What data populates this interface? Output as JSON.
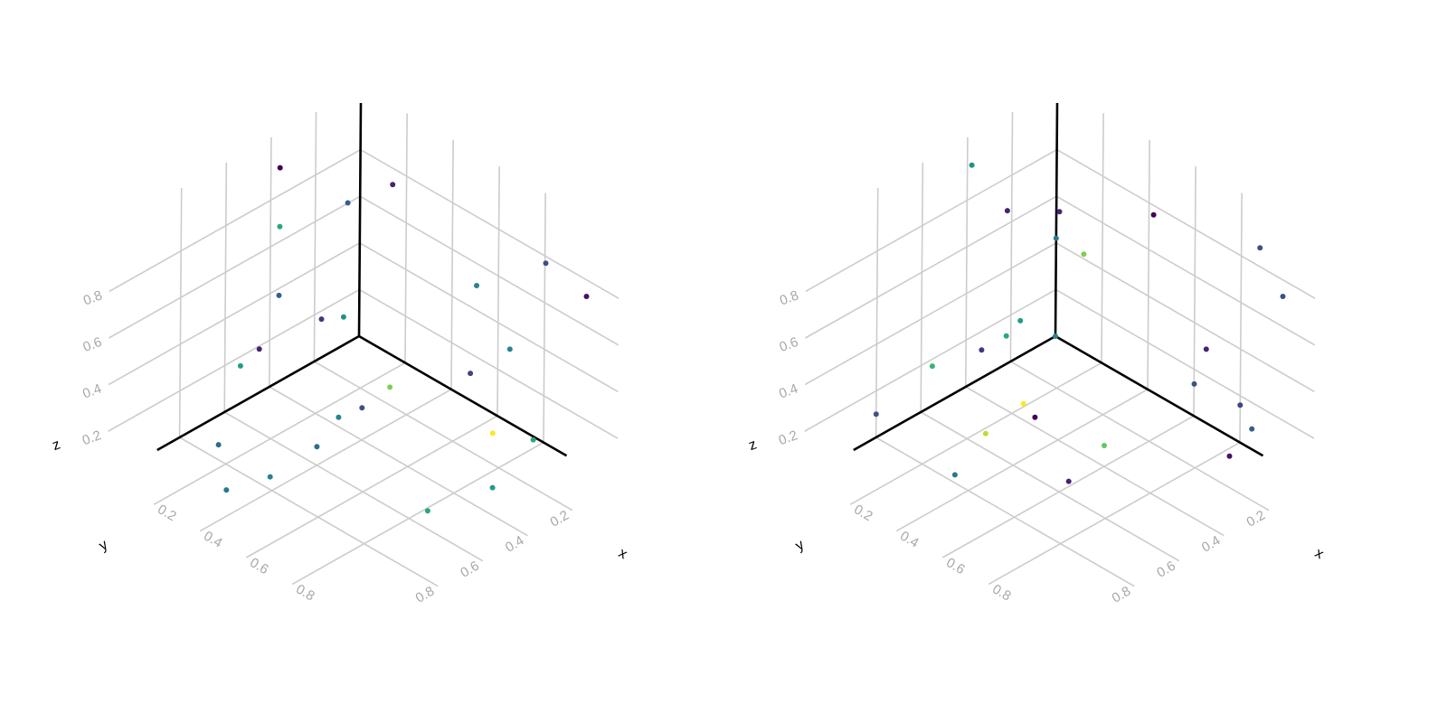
{
  "colormap": [
    "#440154",
    "#46327e",
    "#365c8d",
    "#277f8e",
    "#1fa187",
    "#4ac16d",
    "#a0da39",
    "#fde725"
  ],
  "chart_data": [
    {
      "type": "scatter",
      "title": "",
      "xlabel": "x",
      "ylabel": "y",
      "zlabel": "z",
      "xlim": [
        0,
        1
      ],
      "ylim": [
        0,
        1
      ],
      "zlim": [
        0,
        1
      ],
      "x_ticks": [
        "0.2",
        "0.4",
        "0.6",
        "0.8"
      ],
      "y_ticks": [
        "0.2",
        "0.4",
        "0.6",
        "0.8"
      ],
      "z_ticks": [
        "0.2",
        "0.4",
        "0.6",
        "0.8"
      ],
      "grid": true,
      "points": [
        {
          "x": 0.02,
          "y": 0.38,
          "z": 0.94,
          "c": 0.0
        },
        {
          "x": 0.04,
          "y": 0.4,
          "z": 0.71,
          "c": 0.6
        },
        {
          "x": 0.14,
          "y": 0.2,
          "z": 0.76,
          "c": 0.3
        },
        {
          "x": 0.04,
          "y": 0.21,
          "z": 0.21,
          "c": 0.15
        },
        {
          "x": 0.0,
          "y": 0.07,
          "z": 0.12,
          "c": 0.5
        },
        {
          "x": 0.26,
          "y": 0.13,
          "z": 0.0,
          "c": 0.8
        },
        {
          "x": 0.1,
          "y": 0.55,
          "z": 0.3,
          "c": 0.1
        },
        {
          "x": 0.3,
          "y": 0.4,
          "z": 0.04,
          "c": 0.45
        },
        {
          "x": 0.42,
          "y": 0.42,
          "z": 0.16,
          "c": 0.25
        },
        {
          "x": 0.9,
          "y": 0.1,
          "z": 0.88,
          "c": 0.25
        },
        {
          "x": 0.99,
          "y": 0.01,
          "z": 0.74,
          "c": 0.05
        },
        {
          "x": 0.66,
          "y": 0.16,
          "z": 0.68,
          "c": 0.45
        },
        {
          "x": 0.7,
          "y": 0.05,
          "z": 0.37,
          "c": 0.45
        },
        {
          "x": 0.53,
          "y": 0.05,
          "z": 0.17,
          "c": 0.2
        },
        {
          "x": 0.85,
          "y": 0.28,
          "z": 0.22,
          "c": 1.0
        },
        {
          "x": 0.9,
          "y": 0.15,
          "z": 0.15,
          "c": 0.6
        },
        {
          "x": 0.88,
          "y": 0.31,
          "z": 0.02,
          "c": 0.55
        },
        {
          "x": 0.14,
          "y": 0.0,
          "z": 0.73,
          "c": 0.1
        },
        {
          "x": 0.0,
          "y": 0.36,
          "z": 0.37,
          "c": 0.3
        },
        {
          "x": 0.0,
          "y": 0.53,
          "z": 0.16,
          "c": 0.55
        },
        {
          "x": 0.4,
          "y": 0.6,
          "z": 0.08,
          "c": 0.35
        },
        {
          "x": 0.12,
          "y": 0.75,
          "z": 0.01,
          "c": 0.35
        },
        {
          "x": 0.45,
          "y": 0.86,
          "z": 0.12,
          "c": 0.45
        },
        {
          "x": 0.9,
          "y": 0.62,
          "z": 0.1,
          "c": 0.6
        },
        {
          "x": 0.3,
          "y": 0.9,
          "z": 0.0,
          "c": 0.4
        }
      ]
    },
    {
      "type": "scatter",
      "title": "",
      "xlabel": "x",
      "ylabel": "y",
      "zlabel": "z",
      "xlim": [
        0,
        1
      ],
      "ylim": [
        0,
        1
      ],
      "zlim": [
        0,
        1
      ],
      "x_ticks": [
        "0.2",
        "0.4",
        "0.6",
        "0.8"
      ],
      "y_ticks": [
        "0.2",
        "0.4",
        "0.6",
        "0.8"
      ],
      "z_ticks": [
        "0.2",
        "0.4",
        "0.6",
        "0.8"
      ],
      "grid": true,
      "points": [
        {
          "x": 0.0,
          "y": 0.38,
          "z": 0.94,
          "c": 0.5
        },
        {
          "x": 0.02,
          "y": 0.24,
          "z": 0.68,
          "c": 0.1
        },
        {
          "x": 0.1,
          "y": 0.09,
          "z": 0.64,
          "c": 0.1
        },
        {
          "x": 0.42,
          "y": 0.0,
          "z": 0.76,
          "c": 0.0
        },
        {
          "x": 0.88,
          "y": 0.0,
          "z": 0.88,
          "c": 0.25
        },
        {
          "x": 0.99,
          "y": 0.01,
          "z": 0.74,
          "c": 0.25
        },
        {
          "x": 0.12,
          "y": 0.0,
          "z": 0.42,
          "c": 0.8
        },
        {
          "x": 0.0,
          "y": 0.0,
          "z": 0.42,
          "c": 0.4
        },
        {
          "x": 0.0,
          "y": 0.0,
          "z": 0.0,
          "c": 0.45
        },
        {
          "x": 0.7,
          "y": 0.05,
          "z": 0.37,
          "c": 0.1
        },
        {
          "x": 0.63,
          "y": 0.03,
          "z": 0.17,
          "c": 0.25
        },
        {
          "x": 0.8,
          "y": 0.0,
          "z": 0.16,
          "c": 0.2
        },
        {
          "x": 0.88,
          "y": 0.03,
          "z": 0.12,
          "c": 0.3
        },
        {
          "x": 0.9,
          "y": 0.15,
          "z": 0.08,
          "c": 0.05
        },
        {
          "x": 0.3,
          "y": 0.4,
          "z": 0.04,
          "c": 0.0
        },
        {
          "x": 0.25,
          "y": 0.4,
          "z": 0.07,
          "c": 1.0
        },
        {
          "x": 0.06,
          "y": 0.22,
          "z": 0.22,
          "c": 0.55
        },
        {
          "x": 0.0,
          "y": 0.22,
          "z": 0.12,
          "c": 0.6
        },
        {
          "x": 0.0,
          "y": 0.33,
          "z": 0.12,
          "c": 0.15
        },
        {
          "x": 0.0,
          "y": 0.55,
          "z": 0.17,
          "c": 0.65
        },
        {
          "x": 0.3,
          "y": 0.62,
          "z": 0.09,
          "c": 0.9
        },
        {
          "x": 0.6,
          "y": 0.4,
          "z": 0.09,
          "c": 0.75
        },
        {
          "x": 0.0,
          "y": 0.8,
          "z": 0.1,
          "c": 0.25
        },
        {
          "x": 0.4,
          "y": 0.86,
          "z": 0.1,
          "c": 0.4
        },
        {
          "x": 0.66,
          "y": 0.62,
          "z": 0.09,
          "c": 0.1
        }
      ]
    }
  ]
}
